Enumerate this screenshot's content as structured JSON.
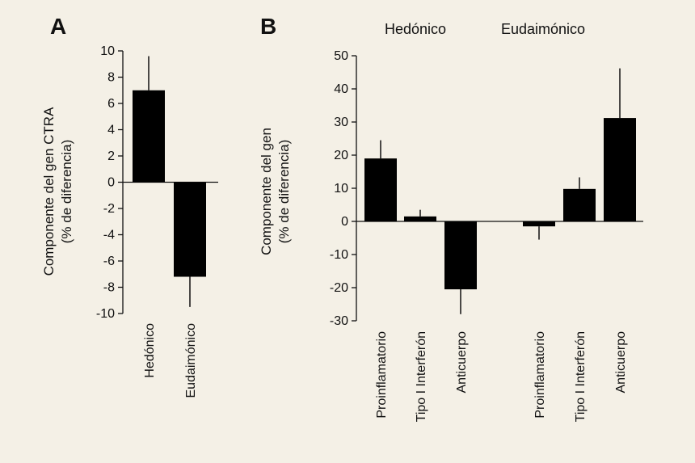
{
  "colors": {
    "background": "#f4f0e6",
    "bar": "#000000",
    "ink": "#111111"
  },
  "chart_data": [
    {
      "panel": "A",
      "type": "bar",
      "ylabel": [
        "Componente del gen CTRA",
        "(% de diferencia)"
      ],
      "ylim": [
        -10,
        10
      ],
      "yticks": [
        10,
        8,
        6,
        4,
        2,
        0,
        -2,
        -4,
        -6,
        -8,
        -10
      ],
      "categories": [
        "Hedónico",
        "Eudaimónico"
      ],
      "values": [
        7.0,
        -7.2
      ],
      "errors": [
        2.6,
        2.3
      ],
      "grid": false
    },
    {
      "panel": "B",
      "type": "bar",
      "ylabel": [
        "Componente del gen",
        "(% de diferencia)"
      ],
      "ylim": [
        -30,
        50
      ],
      "yticks": [
        50,
        40,
        30,
        20,
        10,
        0,
        -10,
        -20,
        -30
      ],
      "groups": [
        "Hedónico",
        "Eudaimónico"
      ],
      "categories": [
        "Proinflamatorio",
        "Tipo I Interferón",
        "Anticuerpo"
      ],
      "series": [
        {
          "group": "Hedónico",
          "values": [
            19,
            1.5,
            -20.5
          ],
          "errors": [
            5.5,
            2.0,
            7.5
          ]
        },
        {
          "group": "Eudaimónico",
          "values": [
            -1.5,
            9.8,
            31.2
          ],
          "errors": [
            4.0,
            3.5,
            15.0
          ]
        }
      ],
      "grid": false
    }
  ]
}
